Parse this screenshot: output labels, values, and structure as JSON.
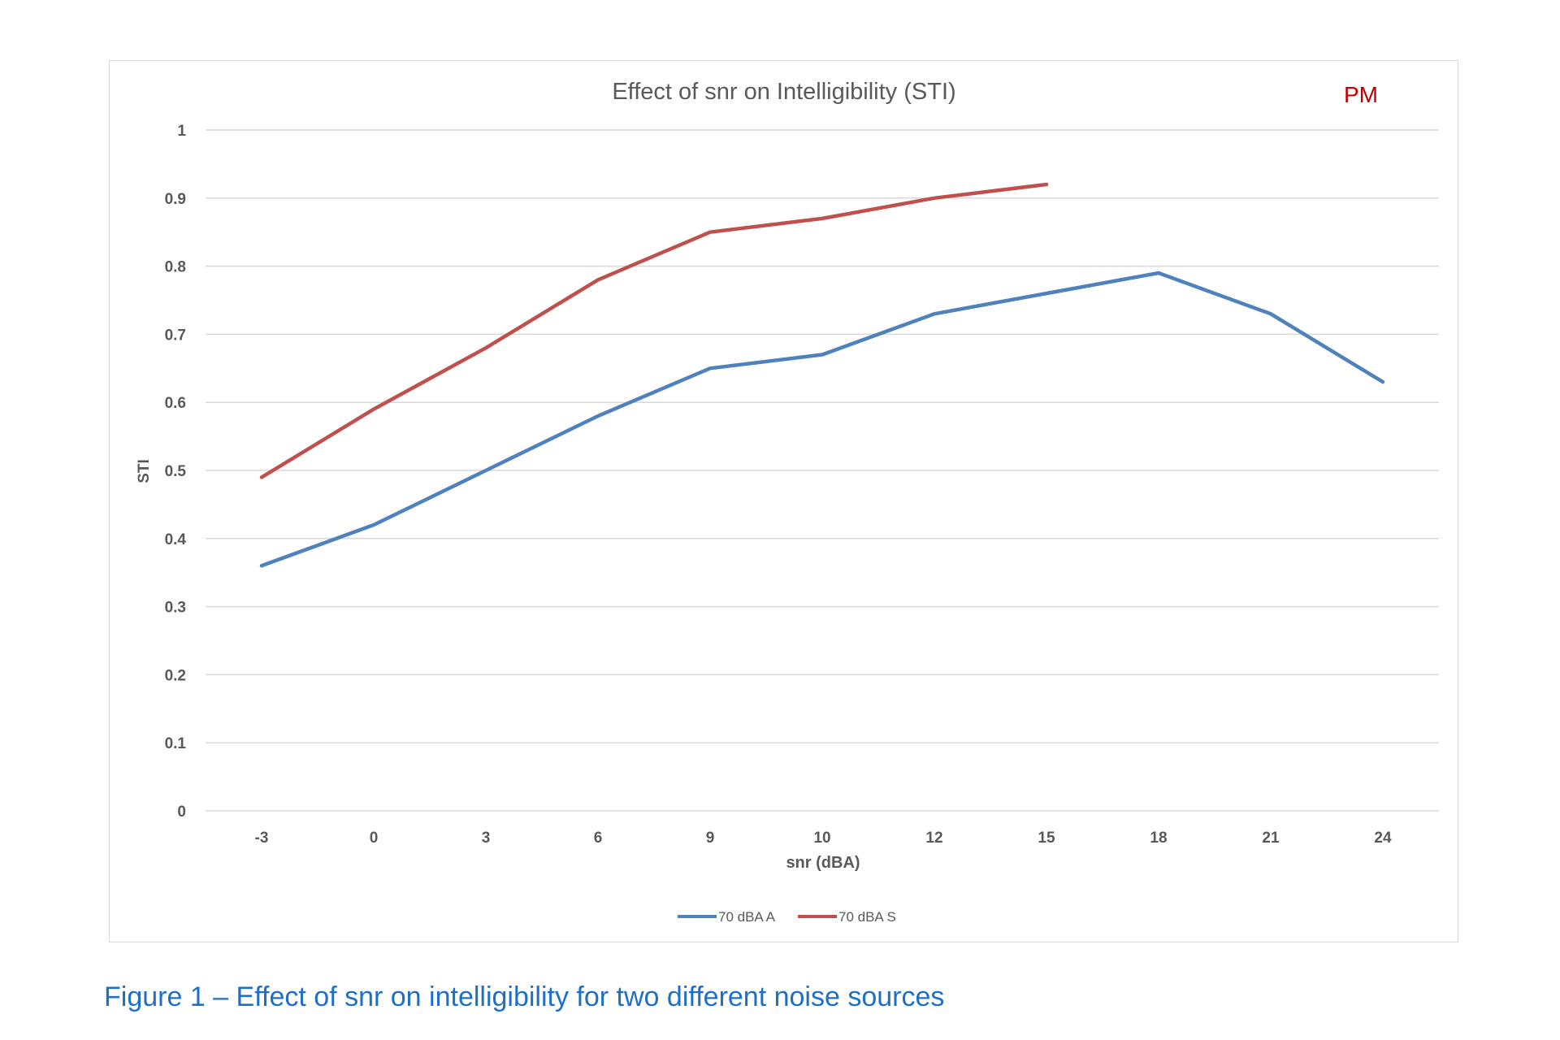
{
  "chart_data": {
    "type": "line",
    "title": "Effect of snr on Intelligibility (STI)",
    "annotation": "PM",
    "xlabel": "snr (dBA)",
    "ylabel": "STI",
    "categories": [
      "-3",
      "0",
      "3",
      "6",
      "9",
      "10",
      "12",
      "15",
      "18",
      "21",
      "24"
    ],
    "yticks": [
      "0",
      "0.1",
      "0.2",
      "0.3",
      "0.4",
      "0.5",
      "0.6",
      "0.7",
      "0.8",
      "0.9",
      "1"
    ],
    "ylim": [
      0,
      1
    ],
    "grid": true,
    "legend_position": "bottom",
    "series": [
      {
        "name": "70 dBA A",
        "color": "#4f81bd",
        "values": [
          0.36,
          0.42,
          0.5,
          0.58,
          0.65,
          0.67,
          0.73,
          0.76,
          0.79,
          0.73,
          0.63
        ]
      },
      {
        "name": "70 dBA S",
        "color": "#c0504d",
        "values": [
          0.49,
          0.59,
          0.68,
          0.78,
          0.85,
          0.87,
          0.9,
          0.92,
          null,
          null,
          null
        ]
      }
    ],
    "annotation_color": "#c00000"
  },
  "caption": "Figure 1 – Effect of snr on intelligibility for two different noise sources",
  "caption_color": "#1f6fc5"
}
